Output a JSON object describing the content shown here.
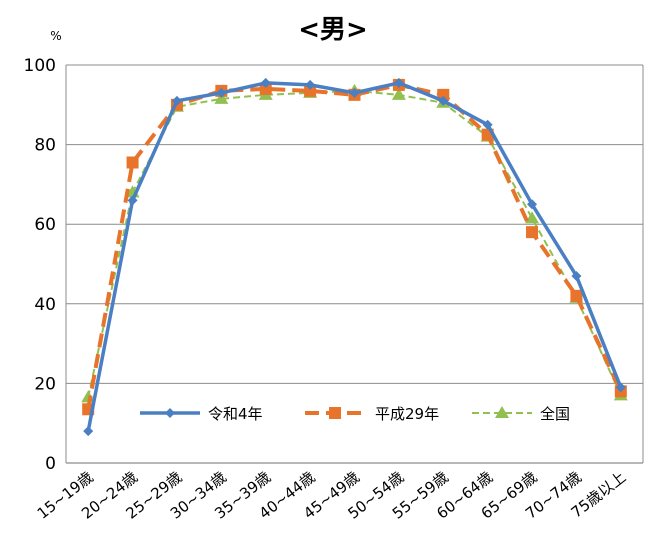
{
  "chart_data": {
    "type": "line",
    "title": "<男>",
    "ylabel": "%",
    "xlabel": "",
    "ylim": [
      0,
      100
    ],
    "yticks": [
      0,
      20,
      40,
      60,
      80,
      100
    ],
    "grid": true,
    "legend_position": "bottom-center inside plot",
    "categories": [
      "15~19歳",
      "20~24歳",
      "25~29歳",
      "30~34歳",
      "35~39歳",
      "40~44歳",
      "45~49歳",
      "50~54歳",
      "55~59歳",
      "60~64歳",
      "65~69歳",
      "70~74歳",
      "75歳以上"
    ],
    "series": [
      {
        "name": "令和4年",
        "color": "#4a7fc4",
        "style": "solid",
        "marker": "diamond",
        "values": [
          8,
          66,
          91,
          93,
          95.5,
          95,
          93,
          95.5,
          91,
          85,
          65,
          47,
          19
        ]
      },
      {
        "name": "平成29年",
        "color": "#e8732a",
        "style": "dashed",
        "marker": "square",
        "values": [
          13.5,
          75.5,
          90,
          93.5,
          94,
          93.5,
          92.5,
          95,
          92.5,
          82.5,
          58,
          42,
          18
        ]
      },
      {
        "name": "全国",
        "color": "#92c050",
        "style": "dashed",
        "marker": "triangle",
        "values": [
          16.5,
          68,
          89.5,
          91.5,
          92.5,
          93,
          93.5,
          92.5,
          90.5,
          82,
          61.5,
          41.5,
          17
        ]
      }
    ]
  }
}
